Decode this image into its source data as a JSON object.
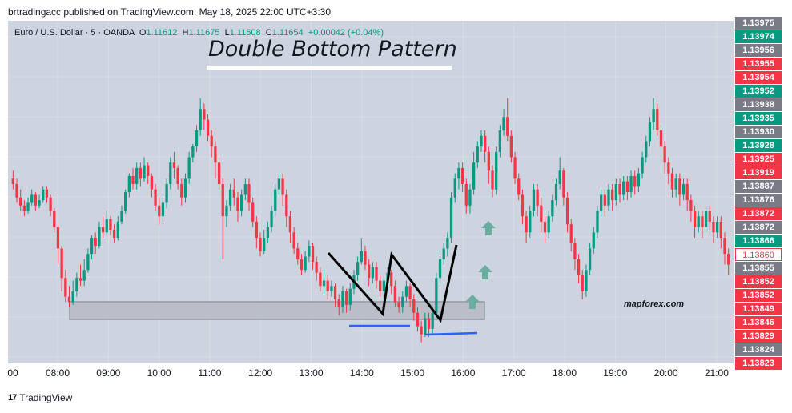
{
  "header": {
    "published_text": "brtradingacc published on TradingView.com, May 18, 2025 22:00 UTC+3:30"
  },
  "legend": {
    "symbol": "Euro / U.S. Dollar · 5 · OANDA",
    "open_label": "O",
    "open": "1.11612",
    "high_label": "H",
    "high": "1.11675",
    "low_label": "L",
    "low": "1.11608",
    "close_label": "C",
    "close": "1.11654",
    "change": "+0.00042 (+0.04%)"
  },
  "annotations": {
    "title": "Double Bottom Pattern",
    "watermark": "mapforex.com"
  },
  "colors": {
    "up": "#089981",
    "down": "#f23645",
    "background": "#cdd3df",
    "neutral_label": "#787b86",
    "support_line": "#2962ff",
    "arrow": "#6aaea0"
  },
  "footer": {
    "logo_text": "17",
    "brand": "TradingView"
  },
  "chart_data": {
    "type": "candlestick",
    "x_labels": [
      "00",
      "08:00",
      "09:00",
      "10:00",
      "11:00",
      "12:00",
      "13:00",
      "14:00",
      "15:00",
      "16:00",
      "17:00",
      "18:00",
      "19:00",
      "20:00",
      "21:00"
    ],
    "price_labels": [
      {
        "value": "1.13975",
        "kind": "neutral"
      },
      {
        "value": "1.13974",
        "kind": "up"
      },
      {
        "value": "1.13956",
        "kind": "neutral"
      },
      {
        "value": "1.13955",
        "kind": "down"
      },
      {
        "value": "1.13954",
        "kind": "down"
      },
      {
        "value": "1.13952",
        "kind": "up"
      },
      {
        "value": "1.13938",
        "kind": "neutral"
      },
      {
        "value": "1.13935",
        "kind": "up"
      },
      {
        "value": "1.13930",
        "kind": "neutral"
      },
      {
        "value": "1.13928",
        "kind": "up"
      },
      {
        "value": "1.13925",
        "kind": "down"
      },
      {
        "value": "1.13919",
        "kind": "down"
      },
      {
        "value": "1.13887",
        "kind": "neutral"
      },
      {
        "value": "1.13876",
        "kind": "neutral"
      },
      {
        "value": "1.13872",
        "kind": "down"
      },
      {
        "value": "1.13872",
        "kind": "neutral"
      },
      {
        "value": "1.13866",
        "kind": "up"
      },
      {
        "value": "1.13860",
        "kind": "current"
      },
      {
        "value": "1.13855",
        "kind": "neutral"
      },
      {
        "value": "1.13852",
        "kind": "down"
      },
      {
        "value": "1.13852",
        "kind": "down"
      },
      {
        "value": "1.13849",
        "kind": "down"
      },
      {
        "value": "1.13846",
        "kind": "down"
      },
      {
        "value": "1.13829",
        "kind": "down"
      },
      {
        "value": "1.13824",
        "kind": "neutral"
      },
      {
        "value": "1.13823",
        "kind": "down"
      }
    ],
    "candles": [
      [
        0.62,
        0.6,
        0.65,
        0.58
      ],
      [
        0.6,
        0.55,
        0.62,
        0.53
      ],
      [
        0.55,
        0.52,
        0.58,
        0.5
      ],
      [
        0.52,
        0.5,
        0.54,
        0.48
      ],
      [
        0.5,
        0.53,
        0.55,
        0.49
      ],
      [
        0.53,
        0.56,
        0.58,
        0.52
      ],
      [
        0.56,
        0.52,
        0.57,
        0.5
      ],
      [
        0.52,
        0.54,
        0.56,
        0.51
      ],
      [
        0.54,
        0.58,
        0.59,
        0.53
      ],
      [
        0.58,
        0.55,
        0.59,
        0.53
      ],
      [
        0.55,
        0.5,
        0.56,
        0.48
      ],
      [
        0.5,
        0.44,
        0.51,
        0.42
      ],
      [
        0.44,
        0.36,
        0.45,
        0.3
      ],
      [
        0.36,
        0.25,
        0.37,
        0.2
      ],
      [
        0.25,
        0.18,
        0.28,
        0.16
      ],
      [
        0.18,
        0.16,
        0.22,
        0.14
      ],
      [
        0.16,
        0.2,
        0.24,
        0.15
      ],
      [
        0.2,
        0.25,
        0.27,
        0.18
      ],
      [
        0.25,
        0.24,
        0.3,
        0.22
      ],
      [
        0.24,
        0.28,
        0.32,
        0.22
      ],
      [
        0.28,
        0.34,
        0.36,
        0.27
      ],
      [
        0.34,
        0.4,
        0.41,
        0.32
      ],
      [
        0.4,
        0.37,
        0.42,
        0.34
      ],
      [
        0.37,
        0.44,
        0.46,
        0.36
      ],
      [
        0.44,
        0.42,
        0.48,
        0.4
      ],
      [
        0.42,
        0.47,
        0.5,
        0.41
      ],
      [
        0.47,
        0.43,
        0.48,
        0.41
      ],
      [
        0.43,
        0.4,
        0.45,
        0.38
      ],
      [
        0.4,
        0.46,
        0.48,
        0.39
      ],
      [
        0.46,
        0.5,
        0.52,
        0.45
      ],
      [
        0.5,
        0.57,
        0.58,
        0.49
      ],
      [
        0.57,
        0.63,
        0.64,
        0.55
      ],
      [
        0.63,
        0.6,
        0.66,
        0.58
      ],
      [
        0.6,
        0.66,
        0.68,
        0.58
      ],
      [
        0.66,
        0.62,
        0.68,
        0.59
      ],
      [
        0.62,
        0.67,
        0.7,
        0.61
      ],
      [
        0.67,
        0.63,
        0.68,
        0.6
      ],
      [
        0.63,
        0.58,
        0.64,
        0.55
      ],
      [
        0.58,
        0.52,
        0.6,
        0.5
      ],
      [
        0.52,
        0.48,
        0.55,
        0.45
      ],
      [
        0.48,
        0.53,
        0.55,
        0.46
      ],
      [
        0.53,
        0.6,
        0.62,
        0.51
      ],
      [
        0.6,
        0.68,
        0.7,
        0.58
      ],
      [
        0.68,
        0.66,
        0.72,
        0.62
      ],
      [
        0.66,
        0.6,
        0.67,
        0.58
      ],
      [
        0.6,
        0.55,
        0.62,
        0.52
      ],
      [
        0.55,
        0.62,
        0.64,
        0.53
      ],
      [
        0.62,
        0.7,
        0.72,
        0.6
      ],
      [
        0.7,
        0.74,
        0.75,
        0.68
      ],
      [
        0.74,
        0.8,
        0.82,
        0.72
      ],
      [
        0.8,
        0.88,
        0.92,
        0.78
      ],
      [
        0.88,
        0.84,
        0.9,
        0.8
      ],
      [
        0.84,
        0.78,
        0.86,
        0.76
      ],
      [
        0.78,
        0.74,
        0.8,
        0.7
      ],
      [
        0.74,
        0.68,
        0.76,
        0.62
      ],
      [
        0.68,
        0.6,
        0.7,
        0.58
      ],
      [
        0.6,
        0.48,
        0.62,
        0.32
      ],
      [
        0.48,
        0.52,
        0.54,
        0.44
      ],
      [
        0.52,
        0.58,
        0.6,
        0.5
      ],
      [
        0.58,
        0.55,
        0.62,
        0.52
      ],
      [
        0.55,
        0.5,
        0.57,
        0.46
      ],
      [
        0.5,
        0.56,
        0.58,
        0.48
      ],
      [
        0.56,
        0.6,
        0.62,
        0.54
      ],
      [
        0.6,
        0.53,
        0.62,
        0.5
      ],
      [
        0.53,
        0.46,
        0.55,
        0.44
      ],
      [
        0.46,
        0.4,
        0.48,
        0.36
      ],
      [
        0.4,
        0.35,
        0.42,
        0.33
      ],
      [
        0.35,
        0.4,
        0.43,
        0.34
      ],
      [
        0.4,
        0.44,
        0.46,
        0.38
      ],
      [
        0.44,
        0.5,
        0.52,
        0.42
      ],
      [
        0.5,
        0.58,
        0.6,
        0.48
      ],
      [
        0.58,
        0.62,
        0.64,
        0.56
      ],
      [
        0.62,
        0.56,
        0.64,
        0.52
      ],
      [
        0.56,
        0.48,
        0.58,
        0.44
      ],
      [
        0.48,
        0.42,
        0.5,
        0.38
      ],
      [
        0.42,
        0.36,
        0.44,
        0.34
      ],
      [
        0.36,
        0.32,
        0.38,
        0.3
      ],
      [
        0.32,
        0.28,
        0.34,
        0.26
      ],
      [
        0.28,
        0.33,
        0.35,
        0.27
      ],
      [
        0.33,
        0.37,
        0.39,
        0.31
      ],
      [
        0.37,
        0.31,
        0.38,
        0.28
      ],
      [
        0.31,
        0.27,
        0.33,
        0.24
      ],
      [
        0.27,
        0.22,
        0.29,
        0.2
      ],
      [
        0.22,
        0.24,
        0.28,
        0.19
      ],
      [
        0.24,
        0.2,
        0.26,
        0.17
      ],
      [
        0.2,
        0.22,
        0.24,
        0.18
      ],
      [
        0.22,
        0.17,
        0.23,
        0.14
      ],
      [
        0.17,
        0.14,
        0.19,
        0.11
      ],
      [
        0.14,
        0.2,
        0.22,
        0.12
      ],
      [
        0.2,
        0.15,
        0.21,
        0.12
      ],
      [
        0.15,
        0.21,
        0.23,
        0.13
      ],
      [
        0.21,
        0.26,
        0.28,
        0.19
      ],
      [
        0.26,
        0.31,
        0.33,
        0.24
      ],
      [
        0.31,
        0.35,
        0.4,
        0.3
      ],
      [
        0.35,
        0.3,
        0.37,
        0.28
      ],
      [
        0.3,
        0.25,
        0.32,
        0.22
      ],
      [
        0.25,
        0.29,
        0.31,
        0.23
      ],
      [
        0.29,
        0.24,
        0.31,
        0.21
      ],
      [
        0.24,
        0.2,
        0.26,
        0.18
      ],
      [
        0.2,
        0.24,
        0.26,
        0.17
      ],
      [
        0.24,
        0.27,
        0.29,
        0.22
      ],
      [
        0.27,
        0.22,
        0.28,
        0.19
      ],
      [
        0.22,
        0.16,
        0.24,
        0.14
      ],
      [
        0.16,
        0.14,
        0.18,
        0.12
      ],
      [
        0.14,
        0.18,
        0.2,
        0.12
      ],
      [
        0.18,
        0.22,
        0.24,
        0.16
      ],
      [
        0.22,
        0.17,
        0.23,
        0.14
      ],
      [
        0.17,
        0.12,
        0.19,
        0.09
      ],
      [
        0.12,
        0.07,
        0.14,
        0.05
      ],
      [
        0.07,
        0.04,
        0.09,
        0.01
      ],
      [
        0.04,
        0.1,
        0.12,
        0.03
      ],
      [
        0.1,
        0.06,
        0.12,
        0.03
      ],
      [
        0.06,
        0.12,
        0.14,
        0.04
      ],
      [
        0.12,
        0.25,
        0.27,
        0.1
      ],
      [
        0.25,
        0.32,
        0.34,
        0.23
      ],
      [
        0.32,
        0.36,
        0.38,
        0.3
      ],
      [
        0.36,
        0.4,
        0.42,
        0.33
      ],
      [
        0.4,
        0.55,
        0.57,
        0.38
      ],
      [
        0.55,
        0.62,
        0.64,
        0.53
      ],
      [
        0.62,
        0.66,
        0.68,
        0.58
      ],
      [
        0.66,
        0.6,
        0.68,
        0.57
      ],
      [
        0.6,
        0.52,
        0.62,
        0.49
      ],
      [
        0.52,
        0.58,
        0.6,
        0.49
      ],
      [
        0.58,
        0.68,
        0.72,
        0.56
      ],
      [
        0.68,
        0.74,
        0.76,
        0.66
      ],
      [
        0.74,
        0.78,
        0.8,
        0.72
      ],
      [
        0.78,
        0.72,
        0.8,
        0.68
      ],
      [
        0.72,
        0.65,
        0.74,
        0.6
      ],
      [
        0.65,
        0.58,
        0.67,
        0.55
      ],
      [
        0.58,
        0.72,
        0.74,
        0.56
      ],
      [
        0.72,
        0.8,
        0.82,
        0.7
      ],
      [
        0.8,
        0.85,
        0.88,
        0.78
      ],
      [
        0.85,
        0.78,
        0.92,
        0.76
      ],
      [
        0.78,
        0.7,
        0.8,
        0.68
      ],
      [
        0.7,
        0.62,
        0.72,
        0.6
      ],
      [
        0.62,
        0.56,
        0.64,
        0.54
      ],
      [
        0.56,
        0.48,
        0.58,
        0.45
      ],
      [
        0.48,
        0.42,
        0.5,
        0.38
      ],
      [
        0.42,
        0.5,
        0.52,
        0.4
      ],
      [
        0.5,
        0.58,
        0.6,
        0.48
      ],
      [
        0.58,
        0.52,
        0.6,
        0.48
      ],
      [
        0.52,
        0.46,
        0.55,
        0.42
      ],
      [
        0.46,
        0.42,
        0.48,
        0.38
      ],
      [
        0.42,
        0.48,
        0.5,
        0.4
      ],
      [
        0.48,
        0.54,
        0.56,
        0.46
      ],
      [
        0.54,
        0.6,
        0.62,
        0.52
      ],
      [
        0.6,
        0.65,
        0.7,
        0.58
      ],
      [
        0.65,
        0.55,
        0.66,
        0.52
      ],
      [
        0.55,
        0.45,
        0.57,
        0.42
      ],
      [
        0.45,
        0.38,
        0.47,
        0.35
      ],
      [
        0.38,
        0.32,
        0.4,
        0.28
      ],
      [
        0.32,
        0.26,
        0.34,
        0.23
      ],
      [
        0.26,
        0.2,
        0.28,
        0.17
      ],
      [
        0.2,
        0.28,
        0.3,
        0.18
      ],
      [
        0.28,
        0.36,
        0.38,
        0.26
      ],
      [
        0.36,
        0.42,
        0.44,
        0.34
      ],
      [
        0.42,
        0.5,
        0.52,
        0.4
      ],
      [
        0.5,
        0.56,
        0.58,
        0.48
      ],
      [
        0.56,
        0.52,
        0.58,
        0.48
      ],
      [
        0.52,
        0.58,
        0.6,
        0.5
      ],
      [
        0.58,
        0.54,
        0.6,
        0.5
      ],
      [
        0.54,
        0.6,
        0.62,
        0.52
      ],
      [
        0.6,
        0.56,
        0.62,
        0.53
      ],
      [
        0.56,
        0.61,
        0.63,
        0.54
      ],
      [
        0.61,
        0.57,
        0.63,
        0.54
      ],
      [
        0.57,
        0.63,
        0.65,
        0.55
      ],
      [
        0.63,
        0.59,
        0.65,
        0.56
      ],
      [
        0.59,
        0.64,
        0.66,
        0.57
      ],
      [
        0.64,
        0.7,
        0.72,
        0.62
      ],
      [
        0.7,
        0.76,
        0.78,
        0.68
      ],
      [
        0.76,
        0.83,
        0.85,
        0.74
      ],
      [
        0.83,
        0.88,
        0.92,
        0.8
      ],
      [
        0.88,
        0.8,
        0.9,
        0.78
      ],
      [
        0.8,
        0.74,
        0.82,
        0.7
      ],
      [
        0.74,
        0.68,
        0.76,
        0.64
      ],
      [
        0.68,
        0.64,
        0.7,
        0.6
      ],
      [
        0.64,
        0.58,
        0.66,
        0.55
      ],
      [
        0.58,
        0.62,
        0.64,
        0.55
      ],
      [
        0.62,
        0.56,
        0.64,
        0.52
      ],
      [
        0.56,
        0.6,
        0.62,
        0.54
      ],
      [
        0.6,
        0.54,
        0.62,
        0.5
      ],
      [
        0.54,
        0.5,
        0.56,
        0.46
      ],
      [
        0.5,
        0.44,
        0.52,
        0.4
      ],
      [
        0.44,
        0.48,
        0.5,
        0.42
      ],
      [
        0.48,
        0.44,
        0.5,
        0.4
      ],
      [
        0.44,
        0.5,
        0.52,
        0.42
      ],
      [
        0.5,
        0.46,
        0.52,
        0.43
      ],
      [
        0.46,
        0.42,
        0.48,
        0.38
      ],
      [
        0.42,
        0.46,
        0.48,
        0.4
      ],
      [
        0.46,
        0.4,
        0.48,
        0.36
      ],
      [
        0.4,
        0.34,
        0.42,
        0.3
      ],
      [
        0.34,
        0.3,
        0.36,
        0.26
      ]
    ]
  }
}
